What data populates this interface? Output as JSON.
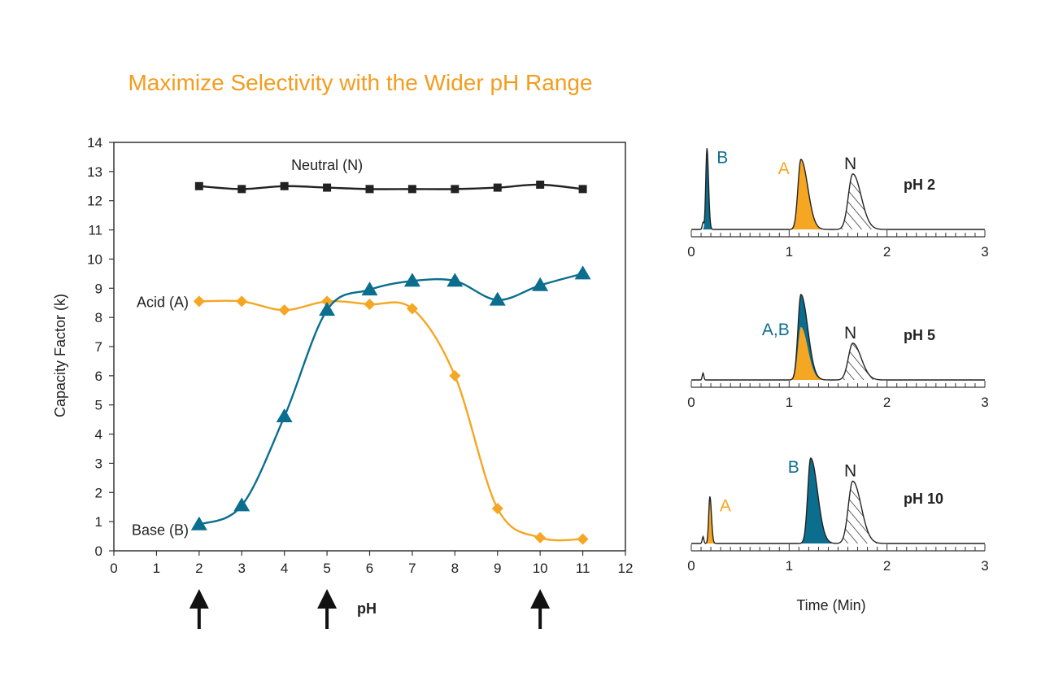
{
  "title": "Maximize Selectivity with the Wider pH Range",
  "colors": {
    "acid": "#f5a623",
    "base": "#0b6e8e",
    "neutral": "#222222",
    "title": "#f39c1f"
  },
  "chart_data": [
    {
      "type": "line",
      "xlabel": "pH",
      "ylabel": "Capacity Factor (k)",
      "xlim": [
        0,
        12
      ],
      "ylim": [
        0,
        14
      ],
      "xticks": [
        "0",
        "1",
        "2",
        "3",
        "4",
        "5",
        "6",
        "7",
        "8",
        "9",
        "10",
        "11",
        "12"
      ],
      "yticks": [
        "0",
        "1",
        "2",
        "3",
        "4",
        "5",
        "6",
        "7",
        "8",
        "9",
        "10",
        "11",
        "12",
        "13",
        "14"
      ],
      "grid": false,
      "series": [
        {
          "name": "Neutral (N)",
          "marker": "square",
          "color": "#222222",
          "x": [
            2,
            3,
            4,
            5,
            6,
            7,
            8,
            9,
            10,
            11
          ],
          "y": [
            12.5,
            12.4,
            12.5,
            12.45,
            12.4,
            12.4,
            12.4,
            12.45,
            12.55,
            12.4
          ]
        },
        {
          "name": "Acid (A)",
          "marker": "diamond",
          "color": "#f5a623",
          "x": [
            2,
            3,
            4,
            5,
            6,
            7,
            8,
            9,
            10,
            11
          ],
          "y": [
            8.55,
            8.55,
            8.25,
            8.55,
            8.45,
            8.3,
            6.0,
            1.45,
            0.45,
            0.4
          ]
        },
        {
          "name": "Base (B)",
          "marker": "triangle",
          "color": "#0b6e8e",
          "x": [
            2,
            3,
            4,
            5,
            6,
            7,
            8,
            9,
            10,
            11
          ],
          "y": [
            0.9,
            1.55,
            4.6,
            8.25,
            8.95,
            9.25,
            9.25,
            8.6,
            9.1,
            9.5
          ]
        }
      ],
      "arrows_at_ph": [
        2,
        5,
        10
      ]
    },
    {
      "type": "line",
      "xlabel": "Time (Min)",
      "xlim": [
        0,
        3
      ],
      "xticks": [
        "0",
        "1",
        "2",
        "3"
      ],
      "panels": [
        {
          "label": "pH 2",
          "peaks": [
            {
              "name": "B",
              "color": "#0b6e8e",
              "time": 0.16,
              "height": 0.95
            },
            {
              "name": "A",
              "color": "#f5a623",
              "time": 1.12,
              "height": 0.82
            },
            {
              "name": "N",
              "color": "hatched",
              "time": 1.65,
              "height": 0.65
            }
          ]
        },
        {
          "label": "pH 5",
          "peaks": [
            {
              "name": "A,B",
              "color": "#0b6e8e",
              "time": 1.12,
              "height": 1.0
            },
            {
              "name": "N",
              "color": "hatched",
              "time": 1.65,
              "height": 0.43
            }
          ]
        },
        {
          "label": "pH 10",
          "peaks": [
            {
              "name": "A",
              "color": "#f5a623",
              "time": 0.19,
              "height": 0.55
            },
            {
              "name": "B",
              "color": "#0b6e8e",
              "time": 1.22,
              "height": 1.0
            },
            {
              "name": "N",
              "color": "hatched",
              "time": 1.65,
              "height": 0.73
            }
          ]
        }
      ]
    }
  ]
}
